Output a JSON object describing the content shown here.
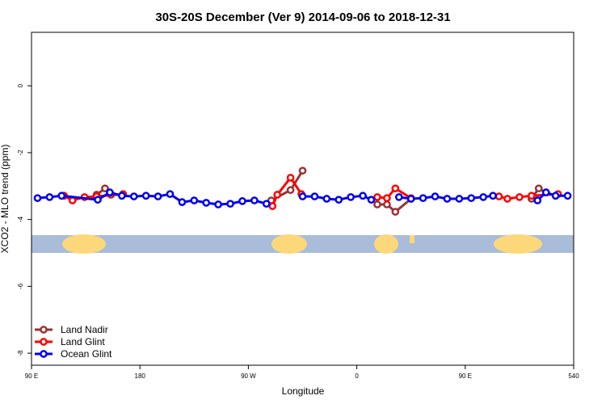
{
  "chart_data": {
    "type": "line",
    "title": "30S-20S December (Ver 9)   2014-09-06 to 2018-12-31",
    "xlabel": "Longitude",
    "ylabel": "XCO2 - MLO trend (ppm)",
    "xlim": [
      90,
      540
    ],
    "ylim": [
      -8.36,
      1.6
    ],
    "xticks": [
      {
        "value": 90,
        "label": "90 E"
      },
      180,
      {
        "value": 270,
        "label": "90 W"
      },
      {
        "value": 360,
        "label": "0"
      },
      {
        "value": 450,
        "label": "90 E"
      },
      540
    ],
    "yticks": [
      0,
      -2,
      -4,
      -6,
      -8
    ],
    "legend": "bottom-left",
    "series": [
      {
        "name": "Land Nadir",
        "color": "#993333",
        "x": [
          144,
          151,
          156,
          null,
          289,
          305,
          315,
          null,
          377,
          385,
          392,
          405,
          null,
          505,
          511,
          517
        ],
        "values": [
          -3.26,
          -3.07,
          -3.26,
          null,
          -3.43,
          -3.12,
          -2.54,
          null,
          -3.55,
          -3.55,
          -3.77,
          -3.38,
          null,
          -3.38,
          -3.07,
          -3.19
        ]
      },
      {
        "name": "Land Glint",
        "color": "#ff0000",
        "x": [
          117,
          124,
          134,
          144,
          166,
          null,
          290,
          294,
          305,
          314,
          null,
          377,
          385,
          392,
          405,
          null,
          478,
          485,
          495,
          505,
          527
        ],
        "values": [
          -3.29,
          -3.43,
          -3.33,
          -3.31,
          -3.24,
          null,
          -3.6,
          -3.26,
          -2.75,
          -3.24,
          null,
          -3.33,
          -3.36,
          -3.07,
          -3.36,
          null,
          -3.31,
          -3.38,
          -3.33,
          -3.29,
          -3.24
        ]
      },
      {
        "name": "Ocean Glint",
        "color": "#0000ee",
        "x": [
          95,
          105,
          115,
          145,
          155,
          165,
          175,
          185,
          195,
          205,
          215,
          225,
          235,
          245,
          255,
          265,
          275,
          285,
          null,
          315,
          325,
          335,
          345,
          355,
          365,
          372,
          null,
          395,
          405,
          415,
          425,
          435,
          445,
          455,
          465,
          473,
          null,
          510,
          517,
          525,
          535
        ],
        "values": [
          -3.36,
          -3.33,
          -3.29,
          -3.41,
          -3.19,
          -3.29,
          -3.31,
          -3.29,
          -3.31,
          -3.24,
          -3.48,
          -3.43,
          -3.5,
          -3.55,
          -3.53,
          -3.45,
          -3.43,
          -3.53,
          null,
          -3.31,
          -3.31,
          -3.38,
          -3.41,
          -3.33,
          -3.29,
          -3.41,
          null,
          -3.33,
          -3.38,
          -3.36,
          -3.31,
          -3.38,
          -3.38,
          -3.36,
          -3.33,
          -3.29,
          null,
          -3.43,
          -3.19,
          -3.29,
          -3.29
        ]
      }
    ]
  }
}
